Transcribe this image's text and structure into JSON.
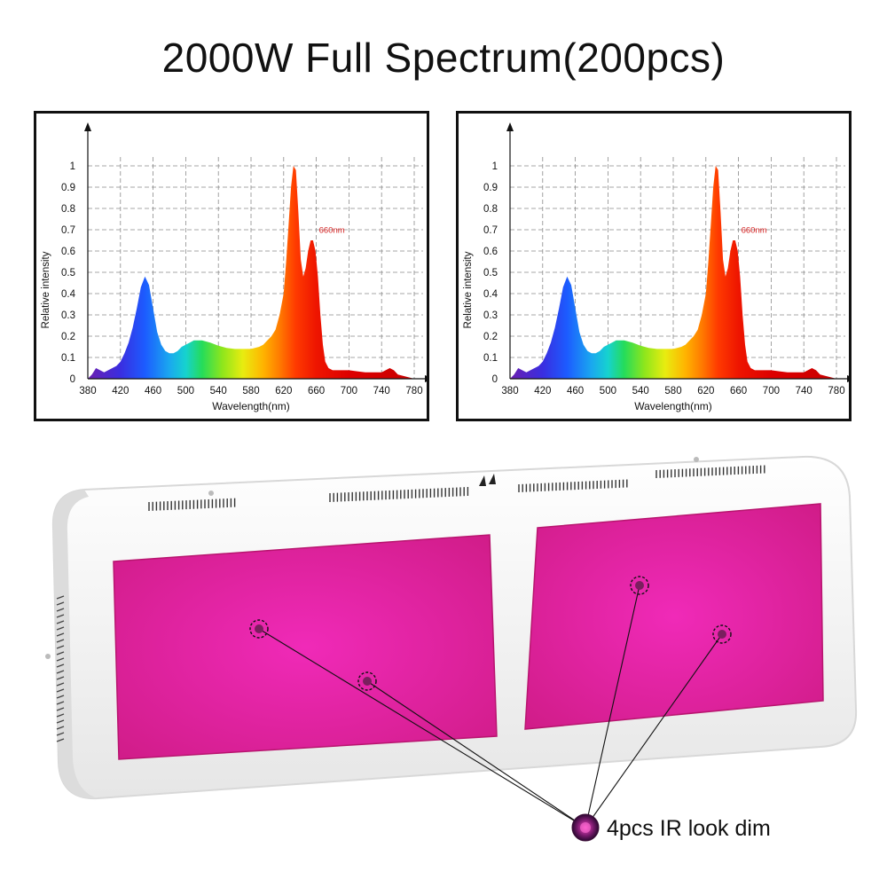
{
  "title": "2000W Full Spectrum(200pcs)",
  "chart_data": [
    {
      "type": "area",
      "title": "",
      "xlabel": "Wavelength(nm)",
      "ylabel": "Relative intensity",
      "xlim": [
        380,
        780
      ],
      "ylim": [
        0,
        1
      ],
      "x_ticks": [
        380,
        420,
        460,
        500,
        540,
        580,
        620,
        660,
        700,
        740,
        780
      ],
      "y_ticks": [
        0,
        0.1,
        0.2,
        0.3,
        0.4,
        0.5,
        0.6,
        0.7,
        0.8,
        0.9,
        1
      ],
      "y_tick_labels": [
        "0",
        "0.1",
        "0.2",
        "0.3",
        "0.4",
        "0.5",
        "0.6",
        "0.7",
        "0.8",
        "0.9",
        "1"
      ],
      "grid": true,
      "fill": "spectrum-gradient",
      "series": [
        {
          "x": [
            380,
            385,
            390,
            395,
            400,
            405,
            410,
            415,
            420,
            425,
            430,
            435,
            440,
            445,
            450,
            455,
            460,
            465,
            470,
            475,
            480,
            485,
            490,
            495,
            500,
            505,
            510,
            515,
            520,
            525,
            530,
            540,
            550,
            560,
            570,
            580,
            590,
            595,
            600,
            605,
            610,
            615,
            620,
            623,
            626,
            629,
            632,
            635,
            638,
            641,
            644,
            647,
            650,
            653,
            656,
            659,
            662,
            665,
            668,
            671,
            675,
            680,
            690,
            700,
            710,
            720,
            730,
            740,
            745,
            750,
            755,
            760,
            770,
            780
          ],
          "y": [
            0,
            0.02,
            0.05,
            0.04,
            0.03,
            0.04,
            0.05,
            0.06,
            0.08,
            0.12,
            0.17,
            0.24,
            0.33,
            0.43,
            0.48,
            0.44,
            0.33,
            0.22,
            0.16,
            0.13,
            0.12,
            0.12,
            0.13,
            0.15,
            0.16,
            0.17,
            0.18,
            0.18,
            0.18,
            0.175,
            0.17,
            0.155,
            0.145,
            0.14,
            0.14,
            0.14,
            0.15,
            0.16,
            0.18,
            0.2,
            0.23,
            0.3,
            0.4,
            0.55,
            0.72,
            0.9,
            1.0,
            0.98,
            0.78,
            0.56,
            0.48,
            0.52,
            0.6,
            0.65,
            0.65,
            0.6,
            0.48,
            0.3,
            0.16,
            0.08,
            0.05,
            0.04,
            0.04,
            0.04,
            0.035,
            0.03,
            0.03,
            0.03,
            0.04,
            0.05,
            0.04,
            0.02,
            0.01,
            0
          ]
        }
      ],
      "annotations": [
        {
          "text": "660nm",
          "x": 660,
          "y": 0.66,
          "color": "#d42020"
        }
      ]
    },
    {
      "type": "area",
      "title": "",
      "xlabel": "Wavelength(nm)",
      "ylabel": "Relative intensity",
      "xlim": [
        380,
        780
      ],
      "ylim": [
        0,
        1
      ],
      "x_ticks": [
        380,
        420,
        460,
        500,
        540,
        580,
        620,
        660,
        700,
        740,
        780
      ],
      "y_ticks": [
        0,
        0.1,
        0.2,
        0.3,
        0.4,
        0.5,
        0.6,
        0.7,
        0.8,
        0.9,
        1
      ],
      "y_tick_labels": [
        "0",
        "0.1",
        "0.2",
        "0.3",
        "0.4",
        "0.5",
        "0.6",
        "0.7",
        "0.8",
        "0.9",
        "1"
      ],
      "grid": true,
      "fill": "spectrum-gradient",
      "series": [
        {
          "x": [
            380,
            385,
            390,
            395,
            400,
            405,
            410,
            415,
            420,
            425,
            430,
            435,
            440,
            445,
            450,
            455,
            460,
            465,
            470,
            475,
            480,
            485,
            490,
            495,
            500,
            505,
            510,
            515,
            520,
            525,
            530,
            540,
            550,
            560,
            570,
            580,
            590,
            595,
            600,
            605,
            610,
            615,
            620,
            623,
            626,
            629,
            632,
            635,
            638,
            641,
            644,
            647,
            650,
            653,
            656,
            659,
            662,
            665,
            668,
            671,
            675,
            680,
            690,
            700,
            710,
            720,
            730,
            740,
            745,
            750,
            755,
            760,
            770,
            780
          ],
          "y": [
            0,
            0.02,
            0.05,
            0.04,
            0.03,
            0.04,
            0.05,
            0.06,
            0.08,
            0.12,
            0.17,
            0.24,
            0.33,
            0.43,
            0.48,
            0.44,
            0.33,
            0.22,
            0.16,
            0.13,
            0.12,
            0.12,
            0.13,
            0.15,
            0.16,
            0.17,
            0.18,
            0.18,
            0.18,
            0.175,
            0.17,
            0.155,
            0.145,
            0.14,
            0.14,
            0.14,
            0.15,
            0.16,
            0.18,
            0.2,
            0.23,
            0.3,
            0.4,
            0.55,
            0.72,
            0.9,
            1.0,
            0.98,
            0.78,
            0.56,
            0.48,
            0.52,
            0.6,
            0.65,
            0.65,
            0.6,
            0.48,
            0.3,
            0.16,
            0.08,
            0.05,
            0.04,
            0.04,
            0.04,
            0.035,
            0.03,
            0.03,
            0.03,
            0.04,
            0.05,
            0.04,
            0.02,
            0.01,
            0
          ]
        }
      ],
      "annotations": [
        {
          "text": "660nm",
          "x": 660,
          "y": 0.66,
          "color": "#d42020"
        }
      ]
    }
  ],
  "lamp": {
    "panels": 2,
    "housing_color": "#f7f7f7",
    "led_panel_color": "#e0249a",
    "callout": {
      "label": "4pcs IR look dim",
      "icon": "ir-led-icon"
    }
  }
}
